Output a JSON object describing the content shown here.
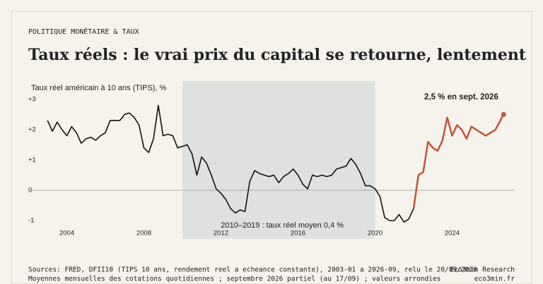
{
  "header": {
    "kicker": "POLITIQUE MONÉTAIRE & TAUX",
    "title": "Taux réels : le vrai prix du capital se retourne, lentement"
  },
  "chart_data": {
    "type": "line",
    "y_label": "Taux réel américain à 10 ans (TIPS), %",
    "xlim": [
      2002,
      2027.25
    ],
    "xticks": [
      2004,
      2008,
      2012,
      2016,
      2020,
      2024
    ],
    "ylim": [
      -1.6,
      3.6
    ],
    "yticks": [
      {
        "value": 3,
        "label": "+3"
      },
      {
        "value": 2,
        "label": "+2"
      },
      {
        "value": 1,
        "label": "+1"
      },
      0,
      -1
    ],
    "highlight": {
      "from": 2010,
      "to": 2020,
      "label": "2010–2019 : taux réel moyen 0,4 %",
      "color": "#e0e0e0"
    },
    "annotation": "2,5 % en sept. 2026",
    "series": [
      {
        "color": "#111111",
        "x": [
          2003,
          2003.25,
          2003.5,
          2003.75,
          2004,
          2004.25,
          2004.5,
          2004.75,
          2005,
          2005.25,
          2005.5,
          2005.75,
          2006,
          2006.25,
          2006.5,
          2006.75,
          2007,
          2007.25,
          2007.5,
          2007.75,
          2008,
          2008.25,
          2008.5,
          2008.75,
          2009,
          2009.25,
          2009.5,
          2009.75,
          2010,
          2010.25,
          2010.5,
          2010.75,
          2011,
          2011.25,
          2011.5,
          2011.75,
          2012,
          2012.25,
          2012.5,
          2012.75,
          2013,
          2013.25,
          2013.5,
          2013.75,
          2014,
          2014.25,
          2014.5,
          2014.75,
          2015,
          2015.25,
          2015.5,
          2015.75,
          2016,
          2016.25,
          2016.5,
          2016.75,
          2017,
          2017.25,
          2017.5,
          2017.75,
          2018,
          2018.25,
          2018.5,
          2018.75,
          2019,
          2019.25,
          2019.5,
          2019.75,
          2020,
          2020.25,
          2020.5,
          2020.75,
          2021,
          2021.25,
          2021.5,
          2021.75,
          2022
        ],
        "values": [
          2.3,
          1.95,
          2.25,
          2.0,
          1.8,
          2.1,
          1.9,
          1.55,
          1.7,
          1.75,
          1.65,
          1.8,
          1.9,
          2.3,
          2.3,
          2.3,
          2.5,
          2.55,
          2.4,
          2.15,
          1.4,
          1.25,
          1.7,
          2.8,
          1.8,
          1.85,
          1.8,
          1.4,
          1.45,
          1.5,
          1.2,
          0.5,
          1.1,
          0.9,
          0.5,
          0.05,
          -0.1,
          -0.3,
          -0.6,
          -0.75,
          -0.65,
          -0.7,
          0.3,
          0.65,
          0.55,
          0.5,
          0.45,
          0.5,
          0.25,
          0.45,
          0.55,
          0.7,
          0.5,
          0.2,
          0.05,
          0.5,
          0.45,
          0.5,
          0.45,
          0.5,
          0.7,
          0.75,
          0.8,
          1.05,
          0.85,
          0.55,
          0.15,
          0.15,
          0.05,
          -0.2,
          -0.9,
          -1.0,
          -1.0,
          -0.8,
          -1.05,
          -0.95,
          -0.6
        ]
      },
      {
        "color": "#c0553a",
        "x": [
          2022,
          2022.25,
          2022.5,
          2022.75,
          2023,
          2023.25,
          2023.5,
          2023.75,
          2024,
          2024.25,
          2024.5,
          2024.75,
          2025,
          2025.25,
          2025.5,
          2025.75,
          2026,
          2026.25,
          2026.5,
          2026.67
        ],
        "values": [
          -0.6,
          0.5,
          0.6,
          1.6,
          1.4,
          1.3,
          1.65,
          2.4,
          1.8,
          2.15,
          2.0,
          1.7,
          2.1,
          2.0,
          1.9,
          1.8,
          1.9,
          2.0,
          2.3,
          2.5
        ]
      }
    ]
  },
  "footer": {
    "source": "Sources: FRED, DFII10 (TIPS 10 ans, rendement reel a echeance constante), 2003-01 a 2026-09, relu le 20/09/2026",
    "note": "Moyennes mensuelles des cotations quotidiennes ; septembre 2026 partiel (au 17/09) ; valeurs arrondies",
    "brand": "Eco3min Research",
    "site": "eco3min.fr"
  }
}
